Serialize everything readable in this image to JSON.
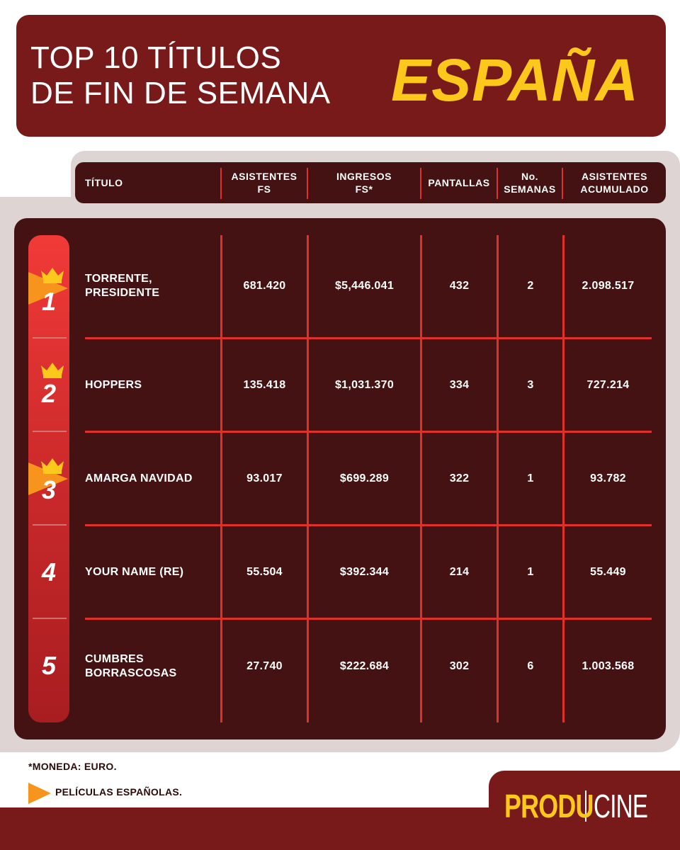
{
  "header": {
    "title_line1": "TOP 10 TÍTULOS",
    "title_line2": "DE FIN DE SEMANA",
    "country": "ESPAÑA"
  },
  "columns": [
    {
      "key": "titulo",
      "label": "TÍTULO"
    },
    {
      "key": "asistentes_fs",
      "label": "ASISTENTES\nFS"
    },
    {
      "key": "ingresos_fs",
      "label": "INGRESOS\nFS*"
    },
    {
      "key": "pantallas",
      "label": "PANTALLAS"
    },
    {
      "key": "semanas",
      "label": "No.\nSEMANAS"
    },
    {
      "key": "acumulado",
      "label": "ASISTENTES\nACUMULADO"
    }
  ],
  "rows": [
    {
      "rank": "1",
      "spanish": true,
      "title": "TORRENTE,\nPRESIDENTE",
      "asistentes_fs": "681.420",
      "ingresos_fs": "$5,446.041",
      "pantallas": "432",
      "semanas": "2",
      "acumulado": "2.098.517"
    },
    {
      "rank": "2",
      "spanish": false,
      "title": "HOPPERS",
      "asistentes_fs": "135.418",
      "ingresos_fs": "$1,031.370",
      "pantallas": "334",
      "semanas": "3",
      "acumulado": "727.214"
    },
    {
      "rank": "3",
      "spanish": true,
      "title": "AMARGA NAVIDAD",
      "asistentes_fs": "93.017",
      "ingresos_fs": "$699.289",
      "pantallas": "322",
      "semanas": "1",
      "acumulado": "93.782"
    },
    {
      "rank": "4",
      "spanish": false,
      "title": "YOUR NAME (RE)",
      "asistentes_fs": "55.504",
      "ingresos_fs": "$392.344",
      "pantallas": "214",
      "semanas": "1",
      "acumulado": "55.449"
    },
    {
      "rank": "5",
      "spanish": false,
      "title": "CUMBRES\nBORRASCOSAS",
      "asistentes_fs": "27.740",
      "ingresos_fs": "$222.684",
      "pantallas": "302",
      "semanas": "6",
      "acumulado": "1.003.568"
    }
  ],
  "footnote": "*MONEDA: EURO.",
  "legend": {
    "label": "PELÍCULAS ESPAÑOLAS.",
    "icon": "orange-triangle-flag-icon"
  },
  "logo": {
    "part1": "PRODU",
    "part2": "CINE"
  },
  "colors": {
    "header_bg": "#78191a",
    "panel_bg": "#451213",
    "accent_yellow": "#fbc81b",
    "grid_red": "#e0302c",
    "flag_orange": "#f7941d"
  }
}
